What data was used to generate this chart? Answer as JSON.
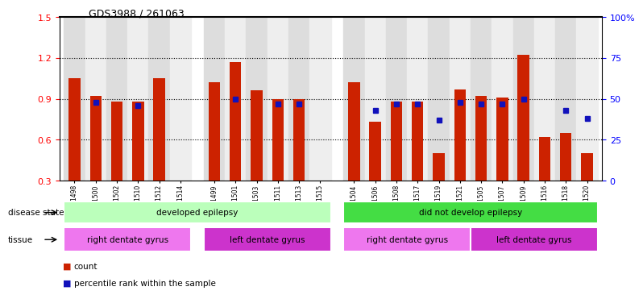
{
  "title": "GDS3988 / 261063",
  "samples": [
    "GSM671498",
    "GSM671500",
    "GSM671502",
    "GSM671510",
    "GSM671512",
    "GSM671514",
    "GSM671499",
    "GSM671501",
    "GSM671503",
    "GSM671511",
    "GSM671513",
    "GSM671515",
    "GSM671504",
    "GSM671506",
    "GSM671508",
    "GSM671517",
    "GSM671519",
    "GSM671521",
    "GSM671505",
    "GSM671507",
    "GSM671509",
    "GSM671516",
    "GSM671518",
    "GSM671520"
  ],
  "bar_heights": [
    1.05,
    0.92,
    0.88,
    0.88,
    1.05,
    0.3,
    1.02,
    1.17,
    0.96,
    0.9,
    0.9,
    0.3,
    1.02,
    0.73,
    0.88,
    0.88,
    0.5,
    0.97,
    0.92,
    0.91,
    1.22,
    0.62,
    0.65,
    0.5
  ],
  "blue_vals": [
    null,
    48,
    null,
    46,
    null,
    null,
    null,
    50,
    null,
    47,
    47,
    null,
    null,
    43,
    47,
    47,
    37,
    48,
    47,
    47,
    50,
    null,
    43,
    38
  ],
  "bar_color": "#cc2200",
  "blue_color": "#1111bb",
  "ylim_left": [
    0.3,
    1.5
  ],
  "ylim_right": [
    0,
    100
  ],
  "yticks_left": [
    0.3,
    0.6,
    0.9,
    1.2,
    1.5
  ],
  "yticks_right": [
    0,
    25,
    50,
    75,
    100
  ],
  "ytick_labels_right": [
    "0",
    "25",
    "50",
    "75",
    "100%"
  ],
  "groups": [
    {
      "label": "developed epilepsy",
      "start": 0,
      "end": 11,
      "color": "#bbffbb"
    },
    {
      "label": "did not develop epilepsy",
      "start": 12,
      "end": 23,
      "color": "#44dd44"
    }
  ],
  "tissues": [
    {
      "label": "right dentate gyrus",
      "start": 0,
      "end": 5,
      "color": "#ee77ee"
    },
    {
      "label": "left dentate gyrus",
      "start": 6,
      "end": 11,
      "color": "#cc33cc"
    },
    {
      "label": "right dentate gyrus",
      "start": 12,
      "end": 17,
      "color": "#ee77ee"
    },
    {
      "label": "left dentate gyrus",
      "start": 18,
      "end": 23,
      "color": "#cc33cc"
    }
  ],
  "legend_count_label": "count",
  "legend_pct_label": "percentile rank within the sample",
  "disease_state_label": "disease state",
  "tissue_label": "tissue",
  "bar_width": 0.55,
  "background_color": "#ffffff",
  "col_bg_light": "#dddddd",
  "col_bg_dark": "#bbbbbb"
}
